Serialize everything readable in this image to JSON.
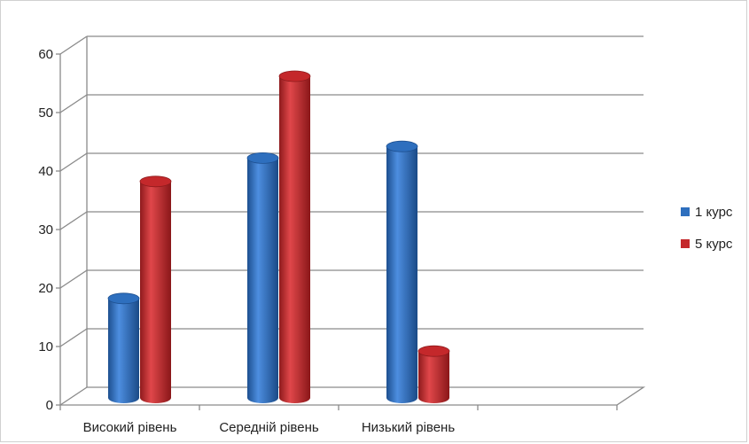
{
  "chart_data": {
    "type": "bar",
    "categories": [
      "Високий рівень",
      "Середній рівень",
      "Низький рівень",
      ""
    ],
    "series": [
      {
        "name": "1 курс",
        "values": [
          17,
          41,
          43,
          null
        ],
        "color": "#2e6fbe"
      },
      {
        "name": "5 курс",
        "values": [
          37,
          55,
          8,
          null
        ],
        "color": "#c4282b"
      }
    ],
    "ylim": [
      0,
      60
    ],
    "yticks": [
      "0",
      "10",
      "20",
      "30",
      "40",
      "50",
      "60"
    ],
    "grid": true,
    "legend_position": "right",
    "title": "",
    "xlabel": "",
    "ylabel": ""
  }
}
